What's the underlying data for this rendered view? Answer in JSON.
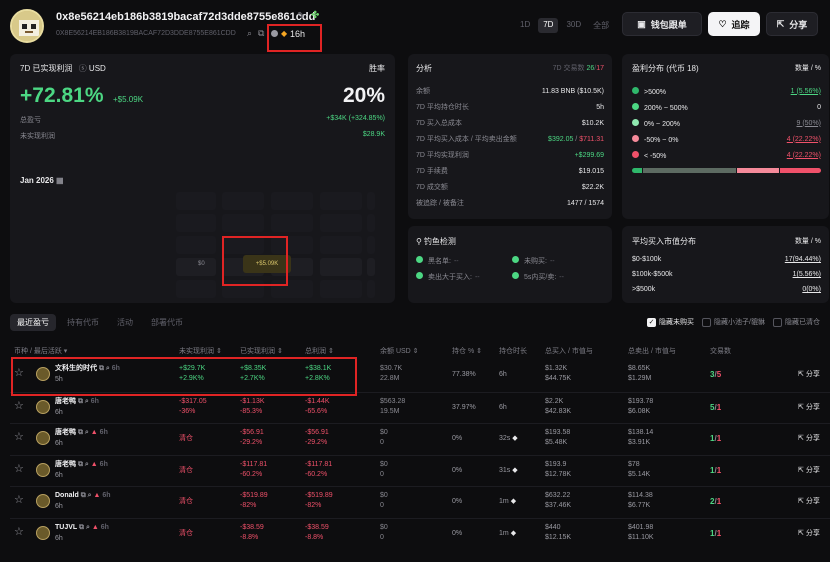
{
  "header": {
    "address": "0x8e56214eb186b3819bacaf72d3dde8755e861cdd",
    "address_upper": "0X8E56214EB186B3819BACAF72D3DDE8755E861CDD",
    "age": "16h",
    "periods": [
      "1D",
      "7D",
      "30D",
      "全部"
    ],
    "active_period": "7D",
    "wallet_copy_label": "钱包跟单",
    "track_label": "追踪",
    "share_label": "分享"
  },
  "pnl_card": {
    "title": "7D 已实现利润",
    "currency": "USD",
    "winrate_label": "胜率",
    "pct": "+72.81%",
    "amount": "+$5.09K",
    "winrate": "20%",
    "total_pnl_label": "总盈亏",
    "total_pnl_value": "+$34K (+324.85%)",
    "unrealized_label": "未实现利润",
    "unrealized_value": "$28.9K",
    "calendar_label": "Jan 2026",
    "cal_left": "$0",
    "cal_highlight": "+$5.09K"
  },
  "analysis": {
    "title": "分析",
    "trades_label": "7D 交易数",
    "trades_win": "26",
    "trades_loss": "17",
    "rows": [
      {
        "label": "余额",
        "value": "11.83 BNB ($10.5K)",
        "value2": "",
        "color": "white"
      },
      {
        "label": "7D 平均持仓时长",
        "value": "5h",
        "value2": "",
        "color": "white"
      },
      {
        "label": "7D 买入总成本",
        "value": "$10.2K",
        "value2": "",
        "color": "white"
      },
      {
        "label": "7D 平均买入成本 / 平均卖出金额",
        "value": "$392.05",
        "value2": "$711.31",
        "color": "split"
      },
      {
        "label": "7D 平均实现利润",
        "value": "+$299.69",
        "value2": "",
        "color": "green"
      },
      {
        "label": "7D 手续费",
        "value": "$19.015",
        "value2": "",
        "color": "white"
      },
      {
        "label": "7D 成交额",
        "value": "$22.2K",
        "value2": "",
        "color": "white"
      },
      {
        "label": "被追踪 / 被备注",
        "value": "1477 / 1574",
        "value2": "",
        "color": "white"
      }
    ]
  },
  "distribution": {
    "title": "盈利分布 (代币 18)",
    "col_label": "数量 / %",
    "rows": [
      {
        "label": ">500%",
        "value": "1 (5.56%)",
        "color": "#2fb86b"
      },
      {
        "label": "200% ~ 500%",
        "value": "0",
        "color": "#4cd783"
      },
      {
        "label": "0% ~ 200%",
        "value": "9 (50%)",
        "color": "#8fe8b0"
      },
      {
        "label": "-50% ~ 0%",
        "value": "4 (22.22%)",
        "color": "#f58a9a"
      },
      {
        "label": "< -50%",
        "value": "4 (22.22%)",
        "color": "#f0516a"
      }
    ],
    "bar_fractions": [
      0.0556,
      0,
      0.5,
      0.2222,
      0.2222
    ]
  },
  "phishing": {
    "title": "钓鱼检测",
    "items": [
      {
        "label": "黑名单:",
        "value": "--"
      },
      {
        "label": "未购买:",
        "value": "--"
      },
      {
        "label": "卖出大于买入:",
        "value": "--"
      },
      {
        "label": "5s内买/卖:",
        "value": "--"
      }
    ]
  },
  "mcap": {
    "title": "平均买入市值分布",
    "col_label": "数量 / %",
    "rows": [
      {
        "label": "$0-$100k",
        "value": "17(94.44%)"
      },
      {
        "label": "$100k-$500k",
        "value": "1(5.56%)"
      },
      {
        "label": ">$500k",
        "value": "0(0%)"
      }
    ]
  },
  "tabs": [
    "最近盈亏",
    "持有代币",
    "活动",
    "部署代币"
  ],
  "filters": [
    "隐藏未购买",
    "隐藏小池子/貔貅",
    "隐藏已清仓"
  ],
  "table": {
    "headers": [
      "币种 / 最后活跃",
      "未实现利润",
      "已实现利润",
      "总利润",
      "余额",
      "USD",
      "持仓 %",
      "持仓时长",
      "总买入 / 市值与",
      "总卖出 / 市值与",
      "交易数"
    ],
    "share_label": "分享",
    "rows": [
      {
        "name": "文科生的时代",
        "time": "6h",
        "active": "5h",
        "unreal": "+$29.7K",
        "unreal_pct": "+2.9K%",
        "real": "+$8.35K",
        "real_pct": "+2.7K%",
        "total": "+$38.1K",
        "total_pct": "+2.8K%",
        "bal1": "$30.7K",
        "bal2": "22.8M",
        "hold": "77.38%",
        "dur": "6h",
        "buy1": "$1.32K",
        "buy2": "$44.75K",
        "sell1": "$8.65K",
        "sell2": "$1.29M",
        "tw": "3",
        "tl": "5",
        "neg": false,
        "cleared": false,
        "warn": false
      },
      {
        "name": "唐老鸭",
        "time": "6h",
        "active": "6h",
        "unreal": "-$317.05",
        "unreal_pct": "-36%",
        "real": "-$1.13K",
        "real_pct": "-85.3%",
        "total": "-$1.44K",
        "total_pct": "-65.6%",
        "bal1": "$563.28",
        "bal2": "19.5M",
        "hold": "37.97%",
        "dur": "6h",
        "buy1": "$2.2K",
        "buy2": "$42.83K",
        "sell1": "$193.78",
        "sell2": "$6.08K",
        "tw": "5",
        "tl": "1",
        "neg": true,
        "cleared": false,
        "warn": false
      },
      {
        "name": "唐老鸭",
        "time": "6h",
        "active": "6h",
        "unreal": "清仓",
        "unreal_pct": "",
        "real": "-$56.91",
        "real_pct": "-29.2%",
        "total": "-$56.91",
        "total_pct": "-29.2%",
        "bal1": "$0",
        "bal2": "0",
        "hold": "0%",
        "dur": "32s",
        "buy1": "$193.58",
        "buy2": "$5.48K",
        "sell1": "$138.14",
        "sell2": "$3.91K",
        "tw": "1",
        "tl": "1",
        "neg": true,
        "cleared": true,
        "warn": true
      },
      {
        "name": "唐老鸭",
        "time": "6h",
        "active": "6h",
        "unreal": "清仓",
        "unreal_pct": "",
        "real": "-$117.81",
        "real_pct": "-60.2%",
        "total": "-$117.81",
        "total_pct": "-60.2%",
        "bal1": "$0",
        "bal2": "0",
        "hold": "0%",
        "dur": "31s",
        "buy1": "$193.9",
        "buy2": "$12.78K",
        "sell1": "$78",
        "sell2": "$5.14K",
        "tw": "1",
        "tl": "1",
        "neg": true,
        "cleared": true,
        "warn": true
      },
      {
        "name": "Donald",
        "time": "6h",
        "active": "6h",
        "unreal": "清仓",
        "unreal_pct": "",
        "real": "-$519.89",
        "real_pct": "-82%",
        "total": "-$519.89",
        "total_pct": "-82%",
        "bal1": "$0",
        "bal2": "0",
        "hold": "0%",
        "dur": "1m",
        "buy1": "$632.22",
        "buy2": "$37.46K",
        "sell1": "$114.38",
        "sell2": "$6.77K",
        "tw": "2",
        "tl": "1",
        "neg": true,
        "cleared": true,
        "warn": true
      },
      {
        "name": "TUJVL",
        "time": "6h",
        "active": "6h",
        "unreal": "清仓",
        "unreal_pct": "",
        "real": "-$38.59",
        "real_pct": "-8.8%",
        "total": "-$38.59",
        "total_pct": "-8.8%",
        "bal1": "$0",
        "bal2": "0",
        "hold": "0%",
        "dur": "1m",
        "buy1": "$440",
        "buy2": "$12.15K",
        "sell1": "$401.98",
        "sell2": "$11.10K",
        "tw": "1",
        "tl": "1",
        "neg": true,
        "cleared": true,
        "warn": true
      }
    ]
  }
}
